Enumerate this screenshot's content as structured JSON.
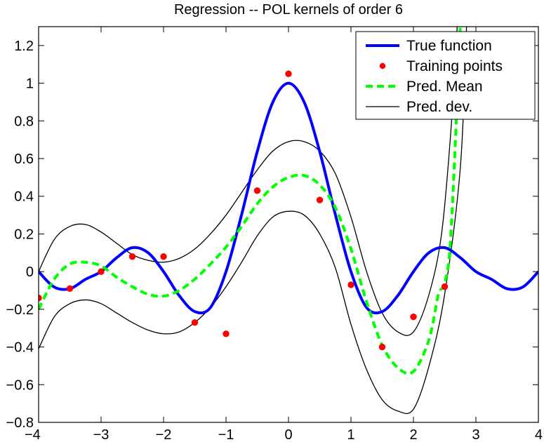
{
  "chart_data": {
    "type": "line",
    "title": "Regression -- POL kernels of order 6",
    "xlabel": "",
    "ylabel": "",
    "xlim": [
      -4,
      4
    ],
    "ylim": [
      -0.8,
      1.3
    ],
    "grid": false,
    "legend_position": "top-right",
    "x_ticks": [
      -4,
      -3,
      -2,
      -1,
      0,
      1,
      2,
      3,
      4
    ],
    "x_tick_labels": [
      "−4",
      "−3",
      "−2",
      "−1",
      "0",
      "1",
      "2",
      "3",
      "4"
    ],
    "y_ticks": [
      -0.8,
      -0.6,
      -0.4,
      -0.2,
      0,
      0.2,
      0.4,
      0.6,
      0.8,
      1,
      1.2
    ],
    "y_tick_labels": [
      "−0.8",
      "−0.6",
      "−0.4",
      "−0.2",
      "0",
      "0.2",
      "0.4",
      "0.6",
      "0.8",
      "1",
      "1.2"
    ],
    "legend": [
      {
        "label": "True function",
        "color": "#0000ff",
        "style": "solid-thick"
      },
      {
        "label": "Training points",
        "color": "#ff0000",
        "style": "marker"
      },
      {
        "label": "Pred. Mean",
        "color": "#00ff00",
        "style": "dashed-thick"
      },
      {
        "label": "Pred. dev.",
        "color": "#000000",
        "style": "solid-thin"
      }
    ],
    "series": [
      {
        "name": "True function",
        "color": "#0000ff",
        "x": [
          -4.0,
          -3.75,
          -3.5,
          -3.25,
          -3.0,
          -2.75,
          -2.5,
          -2.25,
          -2.0,
          -1.75,
          -1.5,
          -1.25,
          -1.0,
          -0.75,
          -0.5,
          -0.25,
          0.0,
          0.25,
          0.5,
          0.75,
          1.0,
          1.25,
          1.5,
          1.75,
          2.0,
          2.25,
          2.5,
          2.75,
          3.0,
          3.25,
          3.5,
          3.75,
          4.0
        ],
        "y": [
          0.0,
          -0.082,
          -0.091,
          -0.041,
          0.0,
          0.074,
          0.127,
          0.101,
          0.0,
          -0.127,
          -0.212,
          -0.191,
          0.0,
          0.303,
          0.637,
          0.9,
          1.0,
          0.9,
          0.637,
          0.303,
          0.0,
          -0.191,
          -0.212,
          -0.127,
          0.0,
          0.101,
          0.127,
          0.074,
          0.0,
          -0.041,
          -0.091,
          -0.082,
          0.0
        ]
      },
      {
        "name": "Training points",
        "color": "#ff0000",
        "x": [
          -4.0,
          -3.5,
          -3.0,
          -2.5,
          -2.0,
          -1.5,
          -1.0,
          -0.5,
          0.0,
          0.5,
          1.0,
          1.5,
          2.0,
          2.5
        ],
        "y": [
          -0.14,
          -0.09,
          0.0,
          0.08,
          0.08,
          -0.27,
          -0.33,
          0.43,
          1.05,
          0.38,
          -0.07,
          -0.4,
          -0.24,
          -0.08
        ]
      },
      {
        "name": "Pred. Mean",
        "color": "#00ff00",
        "x": [
          -4.0,
          -3.75,
          -3.5,
          -3.25,
          -3.0,
          -2.75,
          -2.5,
          -2.25,
          -2.0,
          -1.75,
          -1.5,
          -1.25,
          -1.0,
          -0.75,
          -0.5,
          -0.25,
          0.0,
          0.25,
          0.5,
          0.75,
          1.0,
          1.25,
          1.5,
          1.75,
          2.0,
          2.25,
          2.4,
          2.5,
          2.6,
          2.75
        ],
        "y": [
          -0.2,
          -0.04,
          0.04,
          0.05,
          0.03,
          -0.03,
          -0.08,
          -0.12,
          -0.13,
          -0.1,
          -0.04,
          0.04,
          0.13,
          0.24,
          0.36,
          0.45,
          0.5,
          0.51,
          0.46,
          0.34,
          0.12,
          -0.16,
          -0.39,
          -0.51,
          -0.53,
          -0.36,
          -0.12,
          -0.06,
          0.2,
          1.3
        ]
      },
      {
        "name": "Pred. dev. (upper)",
        "color": "#000000",
        "x": [
          -4.0,
          -3.75,
          -3.5,
          -3.25,
          -3.0,
          -2.75,
          -2.5,
          -2.25,
          -2.0,
          -1.75,
          -1.5,
          -1.25,
          -1.0,
          -0.75,
          -0.5,
          -0.25,
          0.0,
          0.25,
          0.5,
          0.75,
          1.0,
          1.25,
          1.5,
          1.75,
          2.0,
          2.25,
          2.45,
          2.6,
          2.7
        ],
        "y": [
          0.0,
          0.17,
          0.24,
          0.25,
          0.21,
          0.15,
          0.09,
          0.06,
          0.05,
          0.07,
          0.12,
          0.2,
          0.3,
          0.42,
          0.54,
          0.64,
          0.69,
          0.69,
          0.64,
          0.52,
          0.29,
          0.0,
          -0.22,
          -0.32,
          -0.32,
          -0.12,
          0.2,
          0.75,
          1.3
        ]
      },
      {
        "name": "Pred. dev. (lower)",
        "color": "#000000",
        "x": [
          -4.0,
          -3.75,
          -3.5,
          -3.25,
          -3.0,
          -2.75,
          -2.5,
          -2.25,
          -2.0,
          -1.75,
          -1.5,
          -1.25,
          -1.0,
          -0.75,
          -0.5,
          -0.25,
          0.0,
          0.25,
          0.5,
          0.75,
          1.0,
          1.25,
          1.5,
          1.75,
          2.0,
          2.25,
          2.5,
          2.75,
          2.85
        ],
        "y": [
          -0.41,
          -0.24,
          -0.17,
          -0.15,
          -0.17,
          -0.22,
          -0.27,
          -0.31,
          -0.33,
          -0.32,
          -0.27,
          -0.19,
          -0.08,
          0.05,
          0.19,
          0.29,
          0.32,
          0.3,
          0.2,
          0.02,
          -0.28,
          -0.52,
          -0.68,
          -0.74,
          -0.73,
          -0.5,
          -0.12,
          0.55,
          1.3
        ]
      }
    ]
  }
}
